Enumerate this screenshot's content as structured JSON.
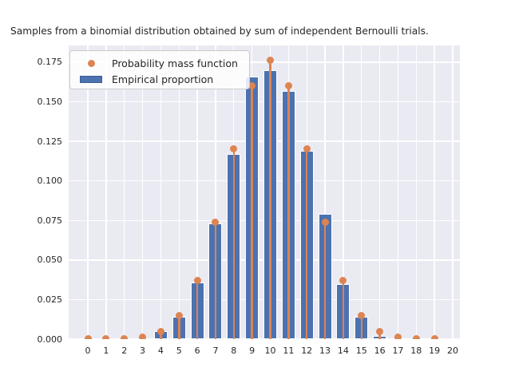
{
  "title": "Samples from a binomial distribution obtained by sum of independent Bernoulli trials.",
  "legend": {
    "items": [
      {
        "label": "Probability mass function",
        "marker": "dot"
      },
      {
        "label": "Empirical proportion",
        "marker": "bar"
      }
    ],
    "position": "upper left"
  },
  "colors": {
    "bar_fill": "#4c72b0",
    "bar_edge": "#ffffff",
    "stem_dot": "#dd8452",
    "plot_background": "#eaeaf2",
    "gridline": "#ffffff",
    "text": "#262626",
    "legend_border": "#cccccc"
  },
  "chart_data": {
    "type": "bar",
    "subtype": "bar-plus-stem-dots",
    "title": "Samples from a binomial distribution obtained by sum of independent Bernoulli trials.",
    "xlabel": "",
    "ylabel": "",
    "grid": true,
    "legend_position": "upper left",
    "x": [
      0,
      1,
      2,
      3,
      4,
      5,
      6,
      7,
      8,
      9,
      10,
      11,
      12,
      13,
      14,
      15,
      16,
      17,
      18,
      19,
      20
    ],
    "xticks": [
      "0",
      "1",
      "2",
      "3",
      "4",
      "5",
      "6",
      "7",
      "8",
      "9",
      "10",
      "11",
      "12",
      "13",
      "14",
      "15",
      "16",
      "17",
      "18",
      "19",
      "20"
    ],
    "yticks": [
      "0.000",
      "0.025",
      "0.050",
      "0.075",
      "0.100",
      "0.125",
      "0.150",
      "0.175"
    ],
    "ytick_values": [
      0.0,
      0.025,
      0.05,
      0.075,
      0.1,
      0.125,
      0.15,
      0.175
    ],
    "ylim": [
      0,
      0.1856
    ],
    "xlim": [
      -1.05,
      20.4
    ],
    "series": [
      {
        "name": "Probability mass function",
        "type": "stem-dot",
        "values": [
          1e-06,
          2e-05,
          0.00018,
          0.0011,
          0.0046,
          0.0148,
          0.037,
          0.0739,
          0.1201,
          0.1602,
          0.1762,
          0.1602,
          0.1201,
          0.0739,
          0.037,
          0.0148,
          0.0046,
          0.0011,
          0.00018,
          2e-05,
          null
        ]
      },
      {
        "name": "Empirical proportion",
        "type": "bar",
        "values": [
          0,
          0,
          0,
          0,
          0.005,
          0.014,
          0.036,
          0.073,
          0.117,
          0.166,
          0.17,
          0.157,
          0.119,
          0.079,
          0.035,
          0.014,
          0.002,
          0,
          0,
          0,
          0
        ]
      }
    ]
  }
}
